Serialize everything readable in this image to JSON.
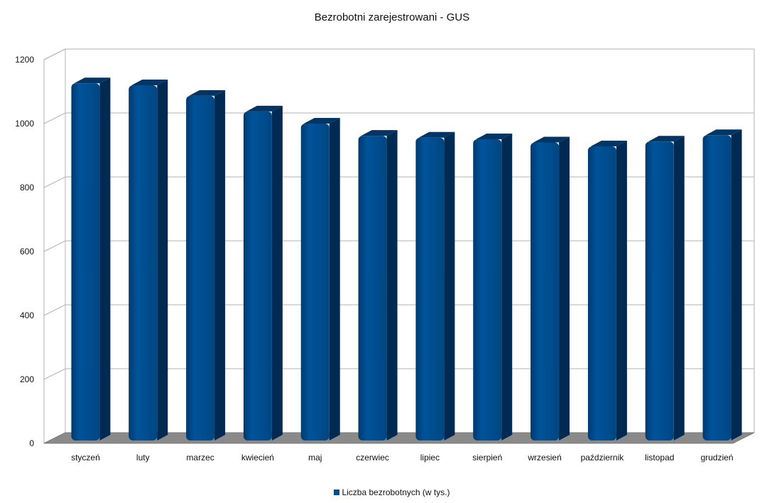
{
  "chart_data": {
    "type": "bar",
    "title": "Bezrobotni zarejestrowani - GUS",
    "xlabel": "",
    "ylabel": "",
    "categories": [
      "styczeń",
      "luty",
      "marzec",
      "kwiecień",
      "maj",
      "czerwiec",
      "lipiec",
      "sierpień",
      "wrzesień",
      "październik",
      "listopad",
      "grudzień"
    ],
    "series": [
      {
        "name": "Liczba bezrobotnych (w tys.)",
        "values": [
          1126,
          1120,
          1087,
          1038,
          1000,
          962,
          956,
          951,
          941,
          929,
          944,
          964
        ],
        "color": "#004c8c"
      }
    ],
    "ylim": [
      0,
      1200
    ],
    "yticks": [
      "0",
      "200",
      "400",
      "600",
      "800",
      "1000",
      "1200"
    ],
    "grid": true,
    "legend": "bottom",
    "style": "3d-cylinder"
  }
}
